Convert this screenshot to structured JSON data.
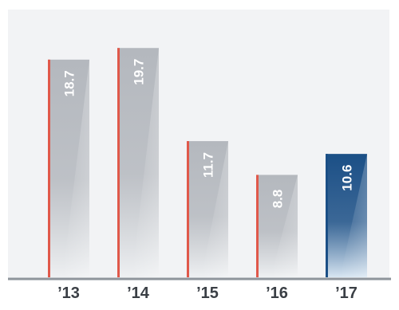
{
  "chart_data": {
    "type": "bar",
    "categories": [
      "’13",
      "’14",
      "’15",
      "’16",
      "’17"
    ],
    "values": [
      18.7,
      19.7,
      11.7,
      8.8,
      10.6
    ],
    "value_labels": [
      "18.7",
      "19.7",
      "11.7",
      "8.8",
      "10.6"
    ],
    "highlight_index": 4,
    "ylim": [
      0,
      23
    ],
    "grid": false,
    "legend": "none",
    "colors": {
      "background_panel": "#f2f3f5",
      "bar_gray_top": "#b4b8be",
      "bar_gray_bottom": "#eef0f2",
      "bar_blue_top": "#1b4f86",
      "bar_blue_bottom": "#d8e6f2",
      "bar_edge_red": "#e0584a",
      "bar_edge_blue": "#1b4f86",
      "baseline": "#8e949b",
      "tick_label": "#3a3f45",
      "value_label": "#ffffff"
    }
  }
}
